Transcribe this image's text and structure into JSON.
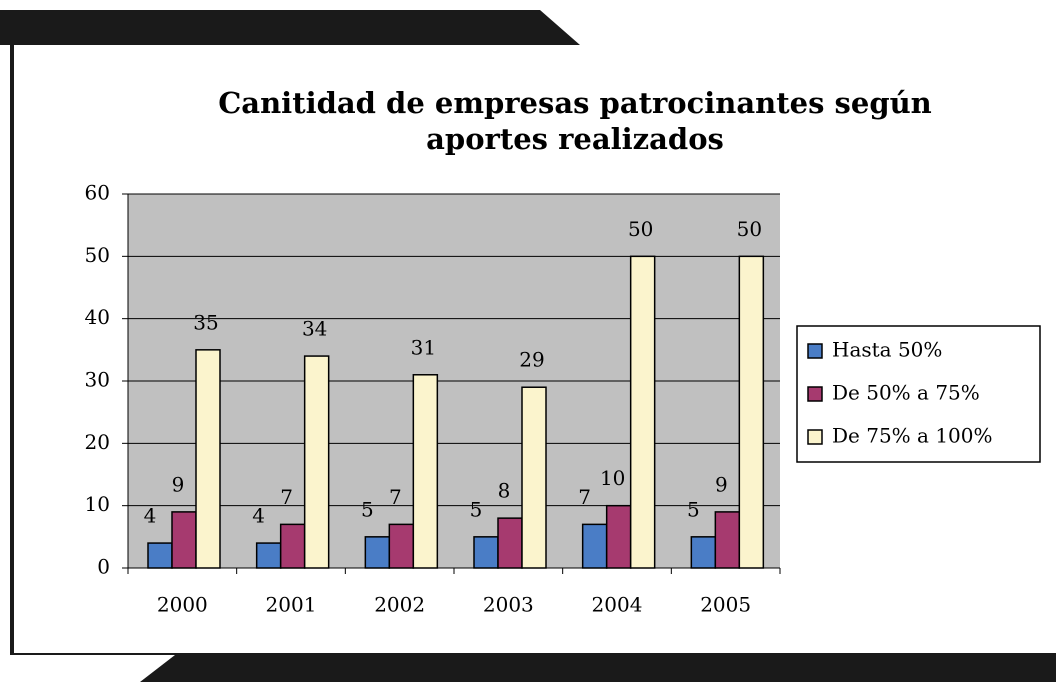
{
  "chart_data": {
    "type": "bar",
    "title": [
      "Canitidad de empresas patrocinantes según",
      "aportes realizados"
    ],
    "categories": [
      "2000",
      "2001",
      "2002",
      "2003",
      "2004",
      "2005"
    ],
    "series": [
      {
        "name": "Hasta 50%",
        "color": "#4a7dc6",
        "values": [
          4,
          4,
          5,
          5,
          7,
          5
        ]
      },
      {
        "name": "De 50% a 75%",
        "color": "#a63a6f",
        "values": [
          9,
          7,
          7,
          8,
          10,
          9
        ]
      },
      {
        "name": "De 75% a 100%",
        "color": "#fbf4cd",
        "values": [
          35,
          34,
          31,
          29,
          50,
          50
        ]
      }
    ],
    "ylim": [
      0,
      60
    ],
    "yticks": [
      0,
      10,
      20,
      30,
      40,
      50,
      60
    ],
    "grid": true,
    "legend": "right"
  }
}
